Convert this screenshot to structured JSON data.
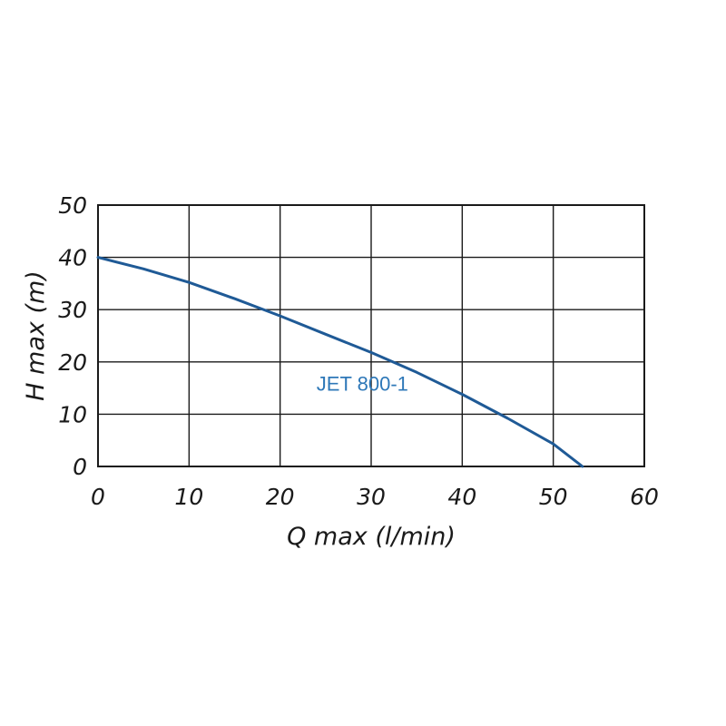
{
  "chart_data": {
    "type": "line",
    "title": "",
    "xlabel": "Q max (l/min)",
    "ylabel": "H max (m)",
    "xlim": [
      0,
      60
    ],
    "ylim": [
      0,
      50
    ],
    "x_ticks": [
      0,
      10,
      20,
      30,
      40,
      50,
      60
    ],
    "y_ticks": [
      0,
      10,
      20,
      30,
      40,
      50
    ],
    "grid": true,
    "series": [
      {
        "name": "JET 800-1",
        "color": "#1f5a96",
        "label_color": "#2e78b8",
        "x": [
          0,
          5,
          10,
          15,
          20,
          25,
          30,
          35,
          40,
          45,
          50,
          53.2
        ],
        "y": [
          40,
          37.8,
          35.2,
          32.1,
          28.8,
          25.3,
          21.8,
          18.0,
          13.8,
          9.2,
          4.3,
          0
        ]
      }
    ]
  }
}
